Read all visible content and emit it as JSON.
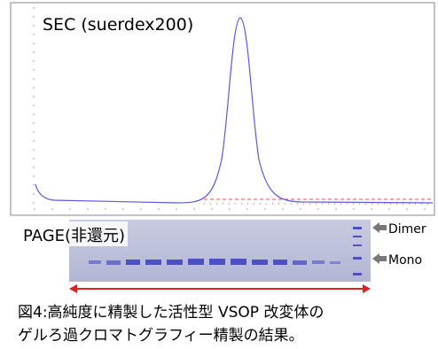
{
  "panel": {
    "chromatogram_title": "SEC (suerdex200)",
    "gel_title": "PAGE(非還元)",
    "dimer_label": "Dimer",
    "mono_label": "Mono"
  },
  "caption": {
    "line1": "図4:高純度に精製した活性型 VSOP 改変体の",
    "line2": "ゲルろ過クロマトグラフィー精製の結果。"
  }
}
